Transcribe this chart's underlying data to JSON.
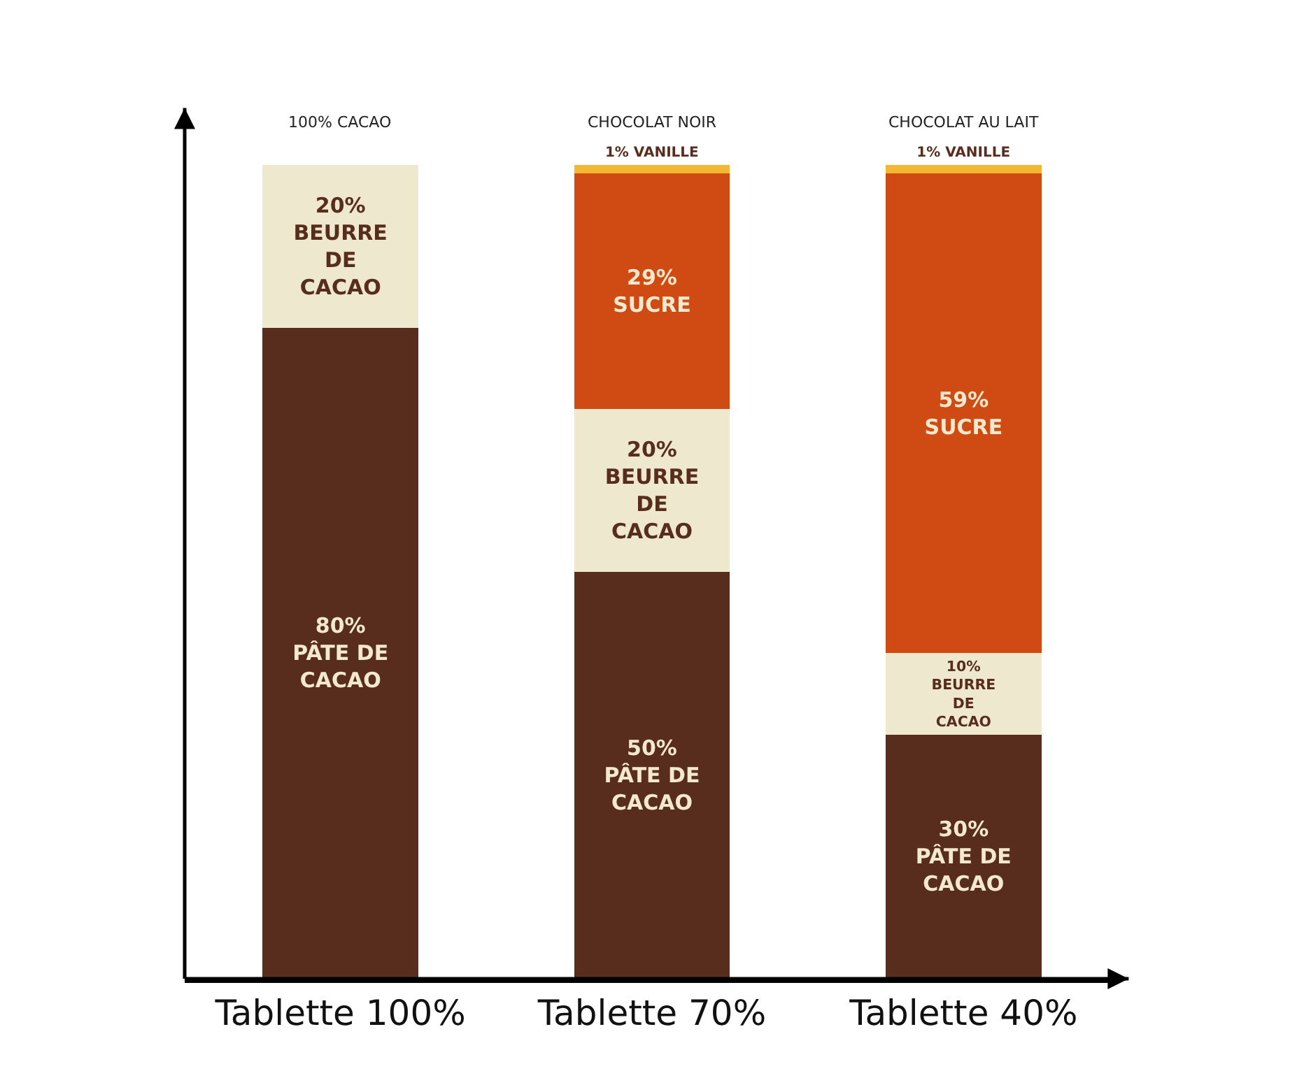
{
  "chart_data": {
    "type": "bar",
    "stacked": true,
    "categories": [
      "Tablette 100%",
      "Tablette 70%",
      "Tablette 40%"
    ],
    "ylim": [
      0,
      100
    ],
    "tick_labels": "x",
    "series": [
      {
        "color": "#582d1e",
        "values": [
          80,
          50,
          30
        ],
        "value_labels": [
          "80%\nPÂTE DE\nCACAO",
          "50%\nPÂTE DE\nCACAO",
          "30%\nPÂTE DE\nCACAO"
        ]
      },
      {
        "color": "#eee8cf",
        "values": [
          20,
          20,
          10
        ],
        "value_labels": [
          "20%\nBEURRE\nDE\nCACAO",
          "20%\nBEURRE\nDE\nCACAO",
          "10%\nBEURRE\nDE\nCACAO"
        ]
      },
      {
        "color": "#d04a14",
        "values": [
          null,
          29,
          59
        ],
        "value_labels": [
          null,
          "29%\nSUCRE",
          "59%\nSUCRE"
        ]
      },
      {
        "color": "#f5b731",
        "values": [
          null,
          1,
          1
        ],
        "value_labels": [
          null,
          "1% VANILLE",
          "1% VANILLE"
        ]
      }
    ],
    "annotations": [
      {
        "text": "100% CACAO",
        "x": "Tablette 100%",
        "y": 100
      },
      {
        "text": "CHOCOLAT NOIR",
        "x": "Tablette 70%",
        "y": 100
      },
      {
        "text": "CHOCOLAT AU LAIT",
        "x": "Tablette 40%",
        "y": 100
      }
    ]
  }
}
